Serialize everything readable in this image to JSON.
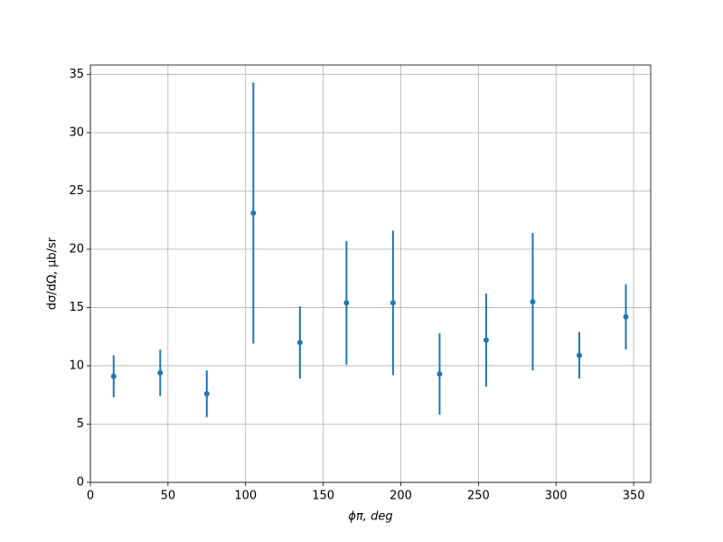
{
  "chart_data": {
    "type": "errorbar",
    "xlabel": "ϕπ, deg",
    "ylabel": "dσ/dΩ, μb/sr",
    "x": [
      15,
      45,
      75,
      105,
      135,
      165,
      195,
      225,
      255,
      285,
      315,
      345
    ],
    "values": [
      9.1,
      9.4,
      7.6,
      23.1,
      12.0,
      15.4,
      15.4,
      9.3,
      12.2,
      15.5,
      10.9,
      14.2
    ],
    "errors": [
      1.8,
      2.0,
      2.0,
      11.2,
      3.1,
      5.3,
      6.2,
      3.5,
      4.0,
      5.9,
      2.0,
      2.8
    ],
    "color": "#1f77b4",
    "xlim": [
      0,
      361
    ],
    "ylim": [
      0,
      35.8
    ],
    "xticks": [
      0,
      50,
      100,
      150,
      200,
      250,
      300,
      350
    ],
    "yticks": [
      0,
      5,
      10,
      15,
      20,
      25,
      30,
      35
    ],
    "grid": true
  }
}
